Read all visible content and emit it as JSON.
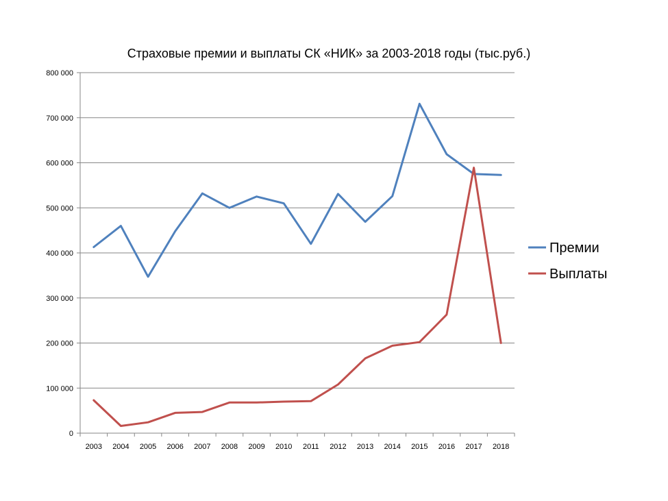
{
  "chart_data": {
    "type": "line",
    "title": "Страховые премии и выплаты СК «НИК» за 2003-2018 годы (тыс.руб.)",
    "xlabel": "",
    "ylabel": "",
    "categories": [
      "2003",
      "2004",
      "2005",
      "2006",
      "2007",
      "2008",
      "2009",
      "2010",
      "2011",
      "2012",
      "2013",
      "2014",
      "2015",
      "2016",
      "2017",
      "2018"
    ],
    "ylim": [
      0,
      800000
    ],
    "yticks": [
      0,
      100000,
      200000,
      300000,
      400000,
      500000,
      600000,
      700000,
      800000
    ],
    "ytick_labels": [
      "0",
      "100 000",
      "200 000",
      "300 000",
      "400 000",
      "500 000",
      "600 000",
      "700 000",
      "800 000"
    ],
    "grid": true,
    "legend_position": "right",
    "series": [
      {
        "name": "Премии",
        "color": "#4F81BD",
        "values": [
          413000,
          460000,
          347000,
          448000,
          532000,
          500000,
          525000,
          510000,
          420000,
          531000,
          469000,
          526000,
          731000,
          619000,
          575000,
          573000
        ]
      },
      {
        "name": "Выплаты",
        "color": "#C0504D",
        "values": [
          73000,
          16000,
          24000,
          45000,
          47000,
          68000,
          68000,
          70000,
          71000,
          108000,
          166000,
          194000,
          202000,
          263000,
          589000,
          200000
        ]
      }
    ]
  }
}
